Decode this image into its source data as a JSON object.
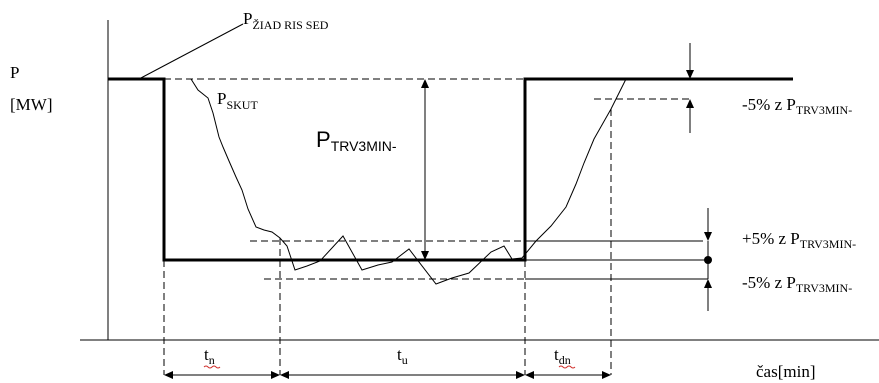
{
  "axis": {
    "y_label_top": "P",
    "y_label_unit": "[MW]",
    "x_label": "čas[min]"
  },
  "labels": {
    "p_ziad": {
      "main": "P",
      "sub": "ŽIAD RIS SED"
    },
    "p_skut": {
      "main": "P",
      "sub": "SKUT"
    },
    "p_trv3min": "PTRV3MIN-",
    "tol_top": {
      "prefix": "-5% z P",
      "sub": "TRV3MIN-"
    },
    "tol_plus": {
      "prefix": "+5% z P",
      "sub": "TRV3MIN-"
    },
    "tol_minus": {
      "prefix": "-5% z P",
      "sub": "TRV3MIN-"
    }
  },
  "intervals": {
    "tn": {
      "main": "t",
      "sub": "n"
    },
    "tu": {
      "main": "t",
      "sub": "u"
    },
    "tdn": {
      "main": "t",
      "sub": "dn"
    }
  },
  "colors": {
    "line": "#000000",
    "spellcheck": "#d0312d"
  }
}
